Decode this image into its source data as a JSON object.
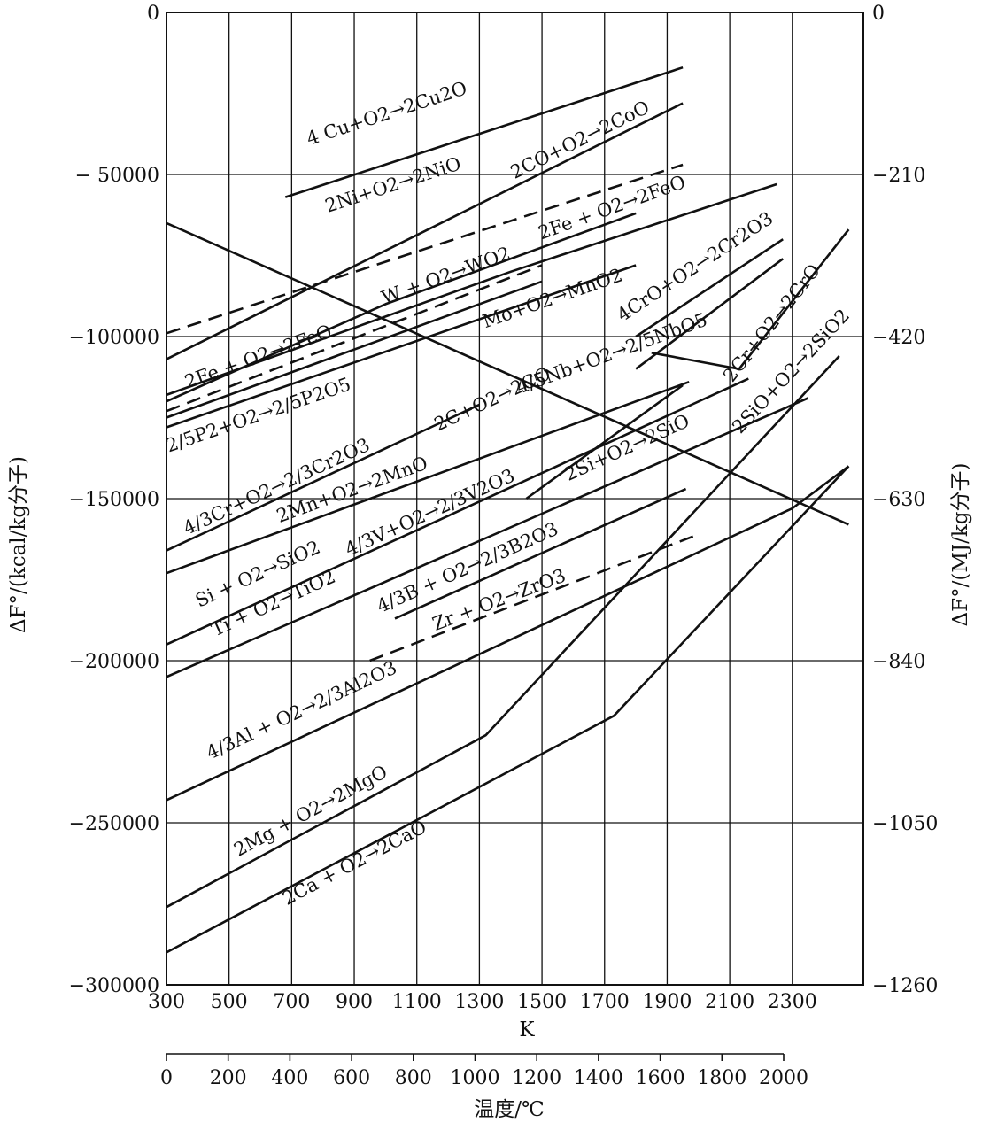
{
  "chart_data": {
    "type": "line",
    "xlabel": "K",
    "xlabel_bottom": "温度/℃",
    "ylabel_left": "ΔF°/(kcal/kg分子)",
    "ylabel_right": "ΔF°/(MJ/kg分子)",
    "xlim": [
      300,
      2480
    ],
    "ylim": [
      -300000,
      0
    ],
    "x_ticks": [
      300,
      500,
      700,
      900,
      1100,
      1300,
      1500,
      1700,
      1900,
      2100,
      2300
    ],
    "x_tick_labels": [
      "300",
      "500",
      "700",
      "900",
      "1100",
      "1300",
      "1500",
      "1700",
      "1900",
      "2100",
      "2300"
    ],
    "y_ticks": [
      0,
      -50000,
      -100000,
      -150000,
      -200000,
      -250000,
      -300000
    ],
    "y_tick_labels": [
      "0",
      "− 50000",
      "−100000",
      "−150000",
      "−200000",
      "−250000",
      "−300000"
    ],
    "right_axis": {
      "ticks_kcal": [
        0,
        -50000,
        -100000,
        -150000,
        -200000,
        -250000,
        -300000
      ],
      "labels": [
        "0",
        "−210",
        "−420",
        "−630",
        "−840",
        "−1050",
        "−1260"
      ]
    },
    "celsius_axis": {
      "ticks": [
        0,
        200,
        400,
        600,
        800,
        1000,
        1200,
        1400,
        1600,
        1800,
        2000
      ],
      "labels": [
        "0",
        "200",
        "400",
        "600",
        "800",
        "1000",
        "1200",
        "1400",
        "1600",
        "1800",
        "2000"
      ]
    },
    "grid": true,
    "series": [
      {
        "name": "4Cu+O2→2Cu2O",
        "style": "solid",
        "points": [
          [
            680,
            -57000
          ],
          [
            1950,
            -17000
          ]
        ]
      },
      {
        "name": "2Ni+O2→2NiO",
        "style": "solid",
        "points": [
          [
            300,
            -107000
          ],
          [
            1950,
            -28000
          ]
        ]
      },
      {
        "name": "2CO+O2→2CoO",
        "style": "dashed",
        "points": [
          [
            300,
            -99000
          ],
          [
            1950,
            -47000
          ]
        ]
      },
      {
        "name": "2Fe+O2→2FeO (upper)",
        "style": "solid",
        "points": [
          [
            300,
            -118000
          ],
          [
            1400,
            -80000
          ],
          [
            2250,
            -53000
          ]
        ]
      },
      {
        "name": "2Fe+O2→2FeO (lower)",
        "style": "solid",
        "points": [
          [
            300,
            -120000
          ],
          [
            1000,
            -90000
          ],
          [
            1800,
            -62000
          ]
        ]
      },
      {
        "name": "W+O2→WO2",
        "style": "dashed",
        "points": [
          [
            300,
            -123000
          ],
          [
            1500,
            -78000
          ]
        ]
      },
      {
        "name": "Mo+O2→MnO2",
        "style": "solid",
        "points": [
          [
            300,
            -125000
          ],
          [
            1500,
            -83000
          ]
        ]
      },
      {
        "name": "4CrO+O2→2Cr2O3",
        "style": "solid",
        "points": [
          [
            1800,
            -100000
          ],
          [
            2270,
            -70000
          ]
        ]
      },
      {
        "name": "2Cr+O2→2CrO",
        "style": "solid",
        "points": [
          [
            1800,
            -110000
          ],
          [
            2270,
            -76000
          ]
        ]
      },
      {
        "name": "2/5P2+O2→2/5P2O5",
        "style": "solid",
        "points": [
          [
            300,
            -128000
          ],
          [
            1800,
            -78000
          ]
        ]
      },
      {
        "name": "2C+O2→2CO",
        "style": "solid",
        "points": [
          [
            300,
            -65000
          ],
          [
            2480,
            -158000
          ]
        ]
      },
      {
        "name": "4/5Nb+O2→2/5NbO5",
        "style": "solid",
        "points": [
          [
            1450,
            -150000
          ],
          [
            1950,
            -115000
          ]
        ]
      },
      {
        "name": "2SiO+O2→2SiO2",
        "style": "solid",
        "points": [
          [
            1850,
            -105000
          ],
          [
            2130,
            -110000
          ],
          [
            2480,
            -67000
          ]
        ]
      },
      {
        "name": "4/3Cr+O2→2/3Cr2O3",
        "style": "solid",
        "points": [
          [
            300,
            -166000
          ],
          [
            1300,
            -121000
          ]
        ]
      },
      {
        "name": "2Mn+O2→2MnO",
        "style": "solid",
        "points": [
          [
            300,
            -173000
          ],
          [
            1970,
            -114000
          ]
        ]
      },
      {
        "name": "4/3V+O2→2/3V2O3",
        "style": "solid",
        "points": [
          [
            300,
            -195000
          ],
          [
            2160,
            -113000
          ]
        ]
      },
      {
        "name": "2Si+O2→2SiO",
        "style": "solid",
        "points": [
          [
            300,
            -205000
          ],
          [
            2350,
            -119000
          ]
        ]
      },
      {
        "name": "4/3B+O2→2/3B2O3",
        "style": "solid",
        "points": [
          [
            1030,
            -187000
          ],
          [
            1960,
            -147000
          ]
        ]
      },
      {
        "name": "Zr+O2→ZrO3",
        "style": "dashed",
        "points": [
          [
            950,
            -200000
          ],
          [
            2000,
            -161000
          ]
        ]
      },
      {
        "name": "4/3Al+O2→2/3Al2O3",
        "style": "solid",
        "points": [
          [
            300,
            -243000
          ],
          [
            2300,
            -153000
          ],
          [
            2480,
            -140000
          ]
        ]
      },
      {
        "name": "2Mg+O2→2MgO",
        "style": "solid",
        "points": [
          [
            300,
            -276000
          ],
          [
            1320,
            -223000
          ],
          [
            2450,
            -106000
          ]
        ]
      },
      {
        "name": "2Ca+O2→2CaO",
        "style": "solid",
        "points": [
          [
            300,
            -290000
          ],
          [
            1730,
            -217000
          ],
          [
            2480,
            -140000
          ]
        ]
      }
    ],
    "labels": [
      {
        "text": "4 Cu+O2→2Cu2O",
        "x": 1010,
        "y": -33000
      },
      {
        "text": "2Ni+O2→2NiO",
        "x": 1030,
        "y": -55000
      },
      {
        "text": "2CO+O2→2CoO",
        "x": 1630,
        "y": -41000
      },
      {
        "text": "2Fe + O2→2FeO",
        "x": 1730,
        "y": -62000
      },
      {
        "text": "W + O2→WO2",
        "x": 1200,
        "y": -83000
      },
      {
        "text": "2Fe + O2→2FeO",
        "x": 600,
        "y": -108000
      },
      {
        "text": "Mo+O2→MnO2",
        "x": 1540,
        "y": -90000
      },
      {
        "text": "4CrO+O2→2Cr2O3",
        "x": 2000,
        "y": -80000
      },
      {
        "text": "2Cr+O2→2CrO",
        "x": 2250,
        "y": -97000
      },
      {
        "text": "2SiO+O2→2SiO2",
        "x": 2310,
        "y": -112000
      },
      {
        "text": "4/5Nb+O2→2/5NbO5",
        "x": 1730,
        "y": -107000
      },
      {
        "text": "2C+O2→2CO",
        "x": 1350,
        "y": -121000
      },
      {
        "text": "2/5P2+O2→2/5P2O5",
        "x": 600,
        "y": -126000
      },
      {
        "text": "4/3Cr+O2→2/3Cr2O3",
        "x": 660,
        "y": -148000
      },
      {
        "text": "2Mn+O2→2MnO",
        "x": 900,
        "y": -149000
      },
      {
        "text": "4/3V+O2→2/3V2O3",
        "x": 1150,
        "y": -156000
      },
      {
        "text": "2Si+O2→2SiO",
        "x": 1780,
        "y": -136000
      },
      {
        "text": "Si + O2→SiO2",
        "x": 600,
        "y": -175000
      },
      {
        "text": "Ti + O2→TiO2",
        "x": 650,
        "y": -184000
      },
      {
        "text": "4/3B + O2→2/3B2O3",
        "x": 1270,
        "y": -173000
      },
      {
        "text": "Zr + O2→ZrO3",
        "x": 1370,
        "y": -183000
      },
      {
        "text": "4/3Al + O2→2/3Al2O3",
        "x": 740,
        "y": -217000
      },
      {
        "text": "2Mg + O2→2MgO",
        "x": 770,
        "y": -248000
      },
      {
        "text": "2Ca + O2→2CaO",
        "x": 910,
        "y": -264000
      }
    ]
  }
}
